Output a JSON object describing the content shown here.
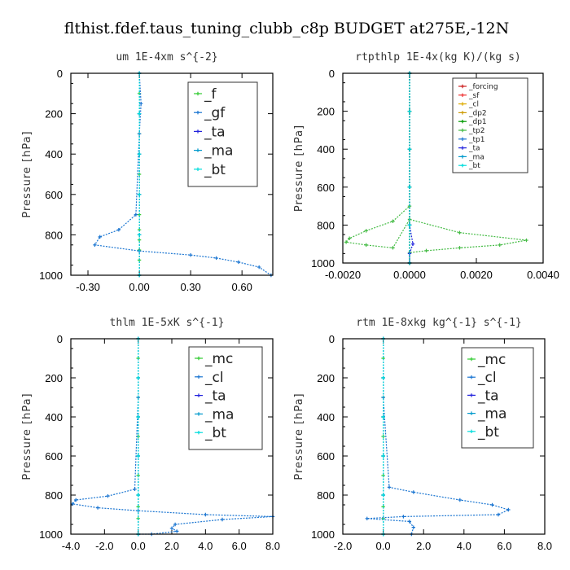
{
  "title": "flthist.fdef.taus_tuning_clubb_c8p  BUDGET at275E,-12N",
  "chart_data": [
    {
      "type": "line",
      "title": "um   1E-4xm s^{-2}",
      "ylabel": "Pressure [hPa]",
      "xlim": [
        -0.4,
        0.78
      ],
      "ylim": [
        1000,
        0
      ],
      "xticks": [
        -0.3,
        0.0,
        0.3,
        0.6
      ],
      "xtick_labels": [
        "-0.30",
        "0.00",
        "0.30",
        "0.60"
      ],
      "yticks": [
        0,
        200,
        400,
        600,
        800,
        1000
      ],
      "legend_style": "big",
      "series": [
        {
          "name": "_f",
          "color": "#33cc33",
          "x": [
            0.0,
            0.0,
            0.0,
            0.0,
            0.0,
            0.0,
            0.0,
            0.0,
            0.0,
            0.0,
            0.0,
            0.0,
            0.0
          ],
          "y": [
            0,
            100,
            200,
            300,
            400,
            500,
            600,
            700,
            775,
            825,
            875,
            925,
            1000
          ]
        },
        {
          "name": "_gf",
          "color": "#1a75d1",
          "x": [
            0.0,
            0.01,
            0.0,
            -0.02,
            -0.12,
            -0.23,
            -0.26,
            0.0,
            0.3,
            0.45,
            0.58,
            0.7,
            0.77
          ],
          "y": [
            0,
            150,
            300,
            700,
            775,
            810,
            850,
            880,
            900,
            915,
            935,
            960,
            1000
          ]
        },
        {
          "name": "_ta",
          "color": "#2222dd",
          "x": [
            0.0,
            0.0,
            0.0,
            0.0,
            0.0,
            0.0
          ],
          "y": [
            0,
            200,
            400,
            600,
            800,
            1000
          ]
        },
        {
          "name": "_ma",
          "color": "#0099cc",
          "x": [
            0.0,
            0.0,
            0.0,
            0.0,
            0.0,
            0.0
          ],
          "y": [
            0,
            200,
            400,
            600,
            800,
            1000
          ]
        },
        {
          "name": "_bt",
          "color": "#00dddd",
          "x": [
            0.0,
            0.0,
            0.0,
            0.0,
            0.0,
            0.0
          ],
          "y": [
            0,
            200,
            400,
            600,
            800,
            1000
          ]
        }
      ]
    },
    {
      "type": "line",
      "title": "rtpthlp   1E-4x(kg K)/(kg s)",
      "ylabel": "Pressure [hPa]",
      "xlim": [
        -0.002,
        0.004
      ],
      "ylim": [
        1000,
        0
      ],
      "xticks": [
        -0.002,
        0.0,
        0.002,
        0.004
      ],
      "xtick_labels": [
        "-0.0020",
        "0.0000",
        "0.0020",
        "0.0040"
      ],
      "yticks": [
        0,
        200,
        400,
        600,
        800,
        1000
      ],
      "legend_style": "small",
      "series": [
        {
          "name": "_forcing",
          "color": "#cc2222",
          "x": [
            0,
            0,
            0,
            0,
            0,
            0
          ],
          "y": [
            0,
            200,
            400,
            600,
            800,
            1000
          ]
        },
        {
          "name": "_sf",
          "color": "#ee3333",
          "x": [
            0,
            0,
            0,
            0,
            0,
            0
          ],
          "y": [
            0,
            200,
            400,
            600,
            800,
            1000
          ]
        },
        {
          "name": "_cl",
          "color": "#ddaa00",
          "x": [
            0,
            0,
            0,
            0,
            0,
            0
          ],
          "y": [
            0,
            200,
            400,
            600,
            800,
            1000
          ]
        },
        {
          "name": "_dp2",
          "color": "#cc9900",
          "x": [
            0,
            0,
            0,
            0,
            0,
            0
          ],
          "y": [
            0,
            200,
            400,
            600,
            800,
            1000
          ]
        },
        {
          "name": "_dp1",
          "color": "#009900",
          "x": [
            0,
            0,
            0,
            0,
            0,
            0
          ],
          "y": [
            0,
            200,
            400,
            600,
            800,
            1000
          ]
        },
        {
          "name": "_tp2",
          "color": "#44bb44",
          "x": [
            0,
            0,
            -0.0005,
            -0.0013,
            -0.0018,
            -0.0019,
            -0.0013,
            -0.0005,
            0.0,
            0.0015,
            0.0035,
            0.0027,
            0.0015,
            0.0005,
            0.0,
            0.0
          ],
          "y": [
            0,
            700,
            780,
            830,
            870,
            890,
            905,
            920,
            770,
            840,
            880,
            905,
            920,
            935,
            945,
            1000
          ]
        },
        {
          "name": "_tp1",
          "color": "#1a75d1",
          "x": [
            0,
            0,
            0,
            0,
            0,
            0
          ],
          "y": [
            0,
            200,
            400,
            600,
            800,
            1000
          ]
        },
        {
          "name": "_ta",
          "color": "#2222dd",
          "x": [
            0,
            0,
            0.0001,
            0,
            0
          ],
          "y": [
            0,
            800,
            900,
            950,
            1000
          ]
        },
        {
          "name": "_ma",
          "color": "#0099cc",
          "x": [
            0,
            0,
            0,
            0,
            0,
            0
          ],
          "y": [
            0,
            200,
            400,
            600,
            800,
            1000
          ]
        },
        {
          "name": "_bt",
          "color": "#00dddd",
          "x": [
            0,
            0,
            0,
            0,
            0,
            0
          ],
          "y": [
            0,
            200,
            400,
            600,
            800,
            1000
          ]
        }
      ]
    },
    {
      "type": "line",
      "title": "thlm   1E-5xK s^{-1}",
      "ylabel": "Pressure [hPa]",
      "xlim": [
        -4.0,
        8.0
      ],
      "ylim": [
        1000,
        0
      ],
      "xticks": [
        -4.0,
        -2.0,
        0.0,
        2.0,
        4.0,
        6.0,
        8.0
      ],
      "xtick_labels": [
        "-4.0",
        "-2.0",
        "0.0",
        "2.0",
        "4.0",
        "6.0",
        "8.0"
      ],
      "yticks": [
        0,
        200,
        400,
        600,
        800,
        1000
      ],
      "legend_style": "big",
      "series": [
        {
          "name": "_mc",
          "color": "#33cc33",
          "x": [
            0.0,
            0.0,
            0.0,
            0.0,
            0.0,
            0.0,
            0.0,
            0.0,
            0.0,
            0.0,
            0.0,
            0.0
          ],
          "y": [
            0,
            100,
            200,
            300,
            400,
            500,
            600,
            700,
            800,
            860,
            920,
            1000
          ]
        },
        {
          "name": "_cl",
          "color": "#1a75d1",
          "x": [
            0.0,
            0.0,
            -0.2,
            -1.8,
            -3.7,
            -3.9,
            -2.4,
            0.0,
            4.0,
            8.0,
            5.0,
            2.2,
            2.0,
            2.3,
            0.8,
            0.0
          ],
          "y": [
            0,
            300,
            770,
            805,
            825,
            845,
            865,
            880,
            900,
            910,
            925,
            950,
            970,
            985,
            1000,
            1000
          ]
        },
        {
          "name": "_ta",
          "color": "#2222dd",
          "x": [
            0.0,
            0.0,
            0.0,
            0.0,
            0.0,
            0.0
          ],
          "y": [
            0,
            200,
            400,
            600,
            800,
            1000
          ]
        },
        {
          "name": "_ma",
          "color": "#0099cc",
          "x": [
            0.0,
            0.0,
            0.0,
            0.0,
            0.0,
            0.0
          ],
          "y": [
            0,
            200,
            400,
            600,
            800,
            1000
          ]
        },
        {
          "name": "_bt",
          "color": "#00dddd",
          "x": [
            0.0,
            0.0,
            0.0,
            0.0,
            0.0,
            0.0
          ],
          "y": [
            0,
            200,
            400,
            600,
            800,
            1000
          ]
        }
      ]
    },
    {
      "type": "line",
      "title": "rtm   1E-8xkg kg^{-1} s^{-1}",
      "ylabel": "Pressure [hPa]",
      "xlim": [
        -2.0,
        8.0
      ],
      "ylim": [
        1000,
        0
      ],
      "xticks": [
        -2.0,
        0.0,
        2.0,
        4.0,
        6.0,
        8.0
      ],
      "xtick_labels": [
        "-2.0",
        "0.0",
        "2.0",
        "4.0",
        "6.0",
        "8.0"
      ],
      "yticks": [
        0,
        200,
        400,
        600,
        800,
        1000
      ],
      "legend_style": "big",
      "series": [
        {
          "name": "_mc",
          "color": "#33cc33",
          "x": [
            0.0,
            0.0,
            0.0,
            0.0,
            0.0,
            0.0,
            0.0,
            0.0,
            0.0,
            0.0,
            0.0,
            0.0
          ],
          "y": [
            0,
            100,
            200,
            300,
            400,
            500,
            600,
            700,
            800,
            860,
            920,
            1000
          ]
        },
        {
          "name": "_cl",
          "color": "#1a75d1",
          "x": [
            0.0,
            0.0,
            0.3,
            1.5,
            3.8,
            5.4,
            6.2,
            5.7,
            1.0,
            -0.8,
            1.3,
            1.5,
            1.4
          ],
          "y": [
            0,
            300,
            760,
            785,
            825,
            850,
            875,
            900,
            910,
            920,
            935,
            965,
            1000
          ]
        },
        {
          "name": "_ta",
          "color": "#2222dd",
          "x": [
            0.0,
            0.0,
            0.0,
            0.0,
            0.0,
            0.0
          ],
          "y": [
            0,
            200,
            400,
            600,
            800,
            1000
          ]
        },
        {
          "name": "_ma",
          "color": "#0099cc",
          "x": [
            0.0,
            0.0,
            0.0,
            0.0,
            0.0,
            0.0
          ],
          "y": [
            0,
            200,
            400,
            600,
            800,
            1000
          ]
        },
        {
          "name": "_bt",
          "color": "#00dddd",
          "x": [
            0.0,
            0.0,
            0.0,
            0.0,
            0.0,
            0.0
          ],
          "y": [
            0,
            200,
            400,
            600,
            800,
            1000
          ]
        }
      ]
    }
  ]
}
